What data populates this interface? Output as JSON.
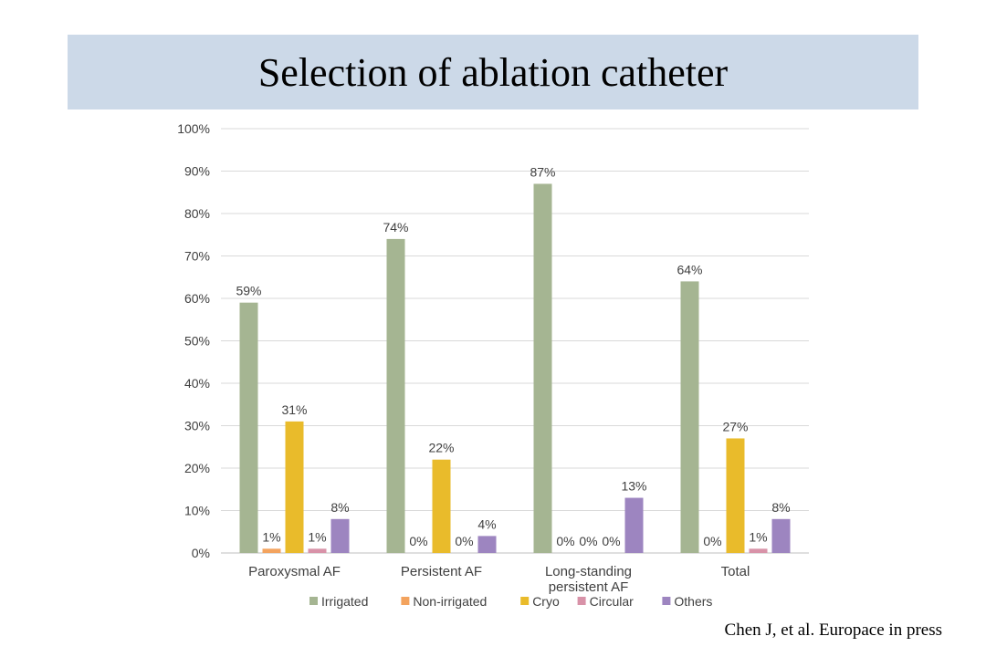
{
  "slide": {
    "title": "Selection of ablation catheter",
    "citation": "Chen J, et al. Europace in press"
  },
  "chart_data": {
    "type": "bar",
    "title": "",
    "xlabel": "",
    "ylabel": "",
    "ylim": [
      0,
      100
    ],
    "y_ticks": [
      0,
      10,
      20,
      30,
      40,
      50,
      60,
      70,
      80,
      90,
      100
    ],
    "y_tick_labels": [
      "0%",
      "10%",
      "20%",
      "30%",
      "40%",
      "50%",
      "60%",
      "70%",
      "80%",
      "90%",
      "100%"
    ],
    "grid": true,
    "legend_position": "bottom",
    "categories": [
      [
        "Paroxysmal AF"
      ],
      [
        "Persistent AF"
      ],
      [
        "Long-standing",
        "persistent AF"
      ],
      [
        "Total"
      ]
    ],
    "series": [
      {
        "name": "Irrigated",
        "color": "#a5b592",
        "values": [
          59,
          74,
          87,
          64
        ],
        "labels": [
          "59%",
          "74%",
          "87%",
          "64%"
        ]
      },
      {
        "name": "Non-irrigated",
        "color": "#f3a35e",
        "values": [
          1,
          0,
          0,
          0
        ],
        "labels": [
          "1%",
          "0%",
          "0%",
          "0%"
        ]
      },
      {
        "name": "Cryo",
        "color": "#e9bb2b",
        "values": [
          31,
          22,
          0,
          27
        ],
        "labels": [
          "31%",
          "22%",
          "0%",
          "27%"
        ]
      },
      {
        "name": "Circular",
        "color": "#d892a8",
        "values": [
          1,
          0,
          0,
          1
        ],
        "labels": [
          "1%",
          "0%",
          "0%",
          "1%"
        ]
      },
      {
        "name": "Others",
        "color": "#9d85c0",
        "values": [
          8,
          4,
          13,
          8
        ],
        "labels": [
          "8%",
          "4%",
          "13%",
          "8%"
        ]
      }
    ]
  }
}
